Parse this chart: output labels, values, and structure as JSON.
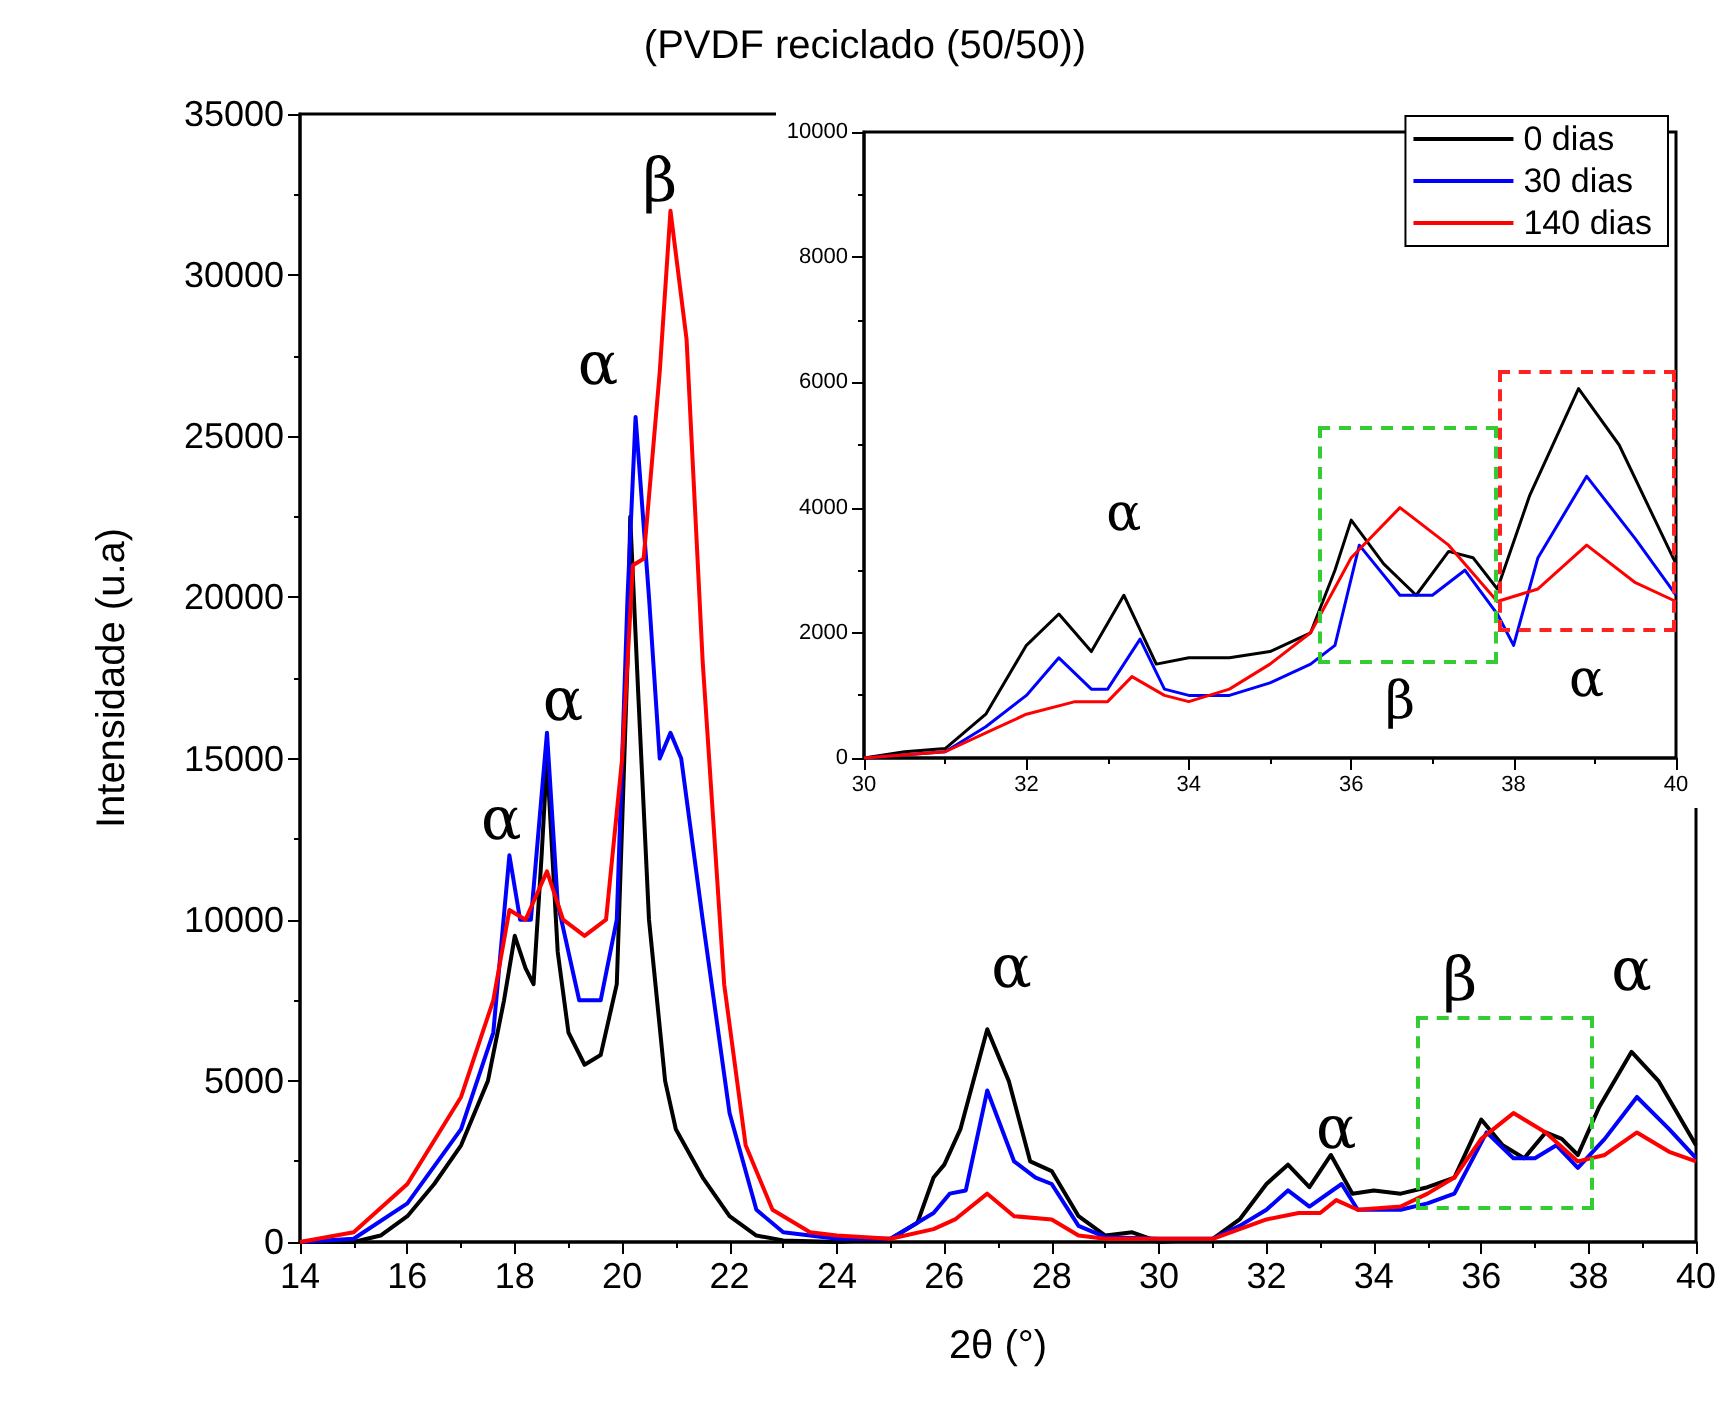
{
  "chart_data": [
    {
      "type": "line",
      "title": "(PVDF reciclado (50/50))",
      "xlabel": "2θ (°)",
      "ylabel": "Intensidade (u.a)",
      "xlim": [
        14,
        40
      ],
      "xticks": [
        14,
        16,
        18,
        20,
        22,
        24,
        26,
        28,
        30,
        32,
        34,
        36,
        38,
        40
      ],
      "ylim": [
        0,
        35000
      ],
      "yticks": [
        0,
        5000,
        10000,
        15000,
        20000,
        25000,
        30000,
        35000
      ],
      "grid": false,
      "legend": false,
      "annotations": [
        "α",
        "α",
        "α",
        "β",
        "α",
        "α",
        "β",
        "α"
      ],
      "series": [
        {
          "color": "#000000",
          "x": [
            14,
            15,
            15.5,
            16,
            16.5,
            17,
            17.5,
            17.8,
            18,
            18.2,
            18.35,
            18.5,
            18.6,
            18.8,
            19,
            19.3,
            19.6,
            19.9,
            20.1,
            20.15,
            20.3,
            20.5,
            20.8,
            21,
            21.5,
            22,
            22.5,
            23,
            24,
            25,
            25.5,
            25.8,
            26,
            26.3,
            26.8,
            27.2,
            27.6,
            28,
            28.5,
            29,
            29.5,
            30,
            31,
            31.5,
            32,
            32.4,
            32.8,
            33.2,
            33.6,
            34,
            34.5,
            35,
            35.5,
            36,
            36.4,
            36.8,
            37.2,
            37.5,
            37.8,
            38.2,
            38.8,
            39.3,
            40
          ],
          "values": [
            0,
            0,
            200,
            800,
            1800,
            3000,
            5000,
            7500,
            9500,
            8500,
            8000,
            12000,
            15000,
            9000,
            6500,
            5500,
            5800,
            8000,
            18000,
            22500,
            17000,
            10000,
            5000,
            3500,
            2000,
            800,
            200,
            50,
            0,
            100,
            600,
            2000,
            2400,
            3500,
            6600,
            5000,
            2500,
            2200,
            800,
            200,
            300,
            0,
            100,
            700,
            1800,
            2400,
            1700,
            2700,
            1500,
            1600,
            1500,
            1700,
            2000,
            3800,
            3000,
            2600,
            3400,
            3200,
            2700,
            4200,
            5900,
            5000,
            3000
          ]
        },
        {
          "color": "#0000ff",
          "x": [
            14,
            15,
            16,
            17,
            17.6,
            17.9,
            18.1,
            18.3,
            18.6,
            18.8,
            19.2,
            19.6,
            19.9,
            20.1,
            20.25,
            20.5,
            20.7,
            20.9,
            21.1,
            21.5,
            22,
            22.5,
            23,
            24,
            25,
            25.8,
            26.1,
            26.4,
            26.8,
            27.3,
            27.7,
            28,
            28.5,
            29,
            30,
            31,
            31.5,
            32,
            32.4,
            32.8,
            33.4,
            33.7,
            34.5,
            35,
            35.5,
            36.1,
            36.6,
            37,
            37.4,
            37.8,
            38.3,
            38.9,
            39.5,
            40
          ],
          "values": [
            0,
            100,
            1200,
            3500,
            6500,
            12000,
            10000,
            10000,
            15800,
            10500,
            7500,
            7500,
            10000,
            20000,
            25600,
            20000,
            15000,
            15800,
            15000,
            10000,
            4000,
            1000,
            300,
            100,
            100,
            900,
            1500,
            1600,
            4700,
            2500,
            2000,
            1800,
            500,
            150,
            100,
            100,
            500,
            1000,
            1600,
            1100,
            1800,
            1000,
            1000,
            1200,
            1500,
            3400,
            2600,
            2600,
            3000,
            2300,
            3200,
            4500,
            3500,
            2600
          ]
        },
        {
          "color": "#ff0000",
          "x": [
            14,
            15,
            16,
            17,
            17.6,
            17.9,
            18.2,
            18.6,
            18.9,
            19.3,
            19.7,
            20,
            20.2,
            20.4,
            20.7,
            20.9,
            21.2,
            21.5,
            21.9,
            22.3,
            22.8,
            23.5,
            24,
            25,
            25.8,
            26.2,
            26.8,
            27.3,
            28,
            28.5,
            29,
            30,
            31,
            31.5,
            32,
            32.6,
            33,
            33.3,
            33.7,
            34.5,
            35,
            35.5,
            36,
            36.6,
            37.2,
            37.8,
            38.3,
            38.9,
            39.5,
            40
          ],
          "values": [
            0,
            300,
            1800,
            4500,
            7500,
            10300,
            10000,
            11500,
            10000,
            9500,
            10000,
            15000,
            21000,
            21200,
            27000,
            32000,
            28000,
            18000,
            8000,
            3000,
            1000,
            300,
            200,
            100,
            400,
            700,
            1500,
            800,
            700,
            200,
            100,
            100,
            100,
            400,
            700,
            900,
            900,
            1300,
            1000,
            1100,
            1500,
            2000,
            3200,
            4000,
            3400,
            2500,
            2700,
            3400,
            2800,
            2500
          ]
        }
      ]
    },
    {
      "type": "line",
      "xlim": [
        30,
        40
      ],
      "xticks": [
        30,
        32,
        34,
        36,
        38,
        40
      ],
      "ylim": [
        0,
        10000
      ],
      "yticks": [
        0,
        2000,
        4000,
        6000,
        8000,
        10000
      ],
      "grid": false,
      "legend": "top right",
      "annotations": [
        "α",
        "β",
        "α"
      ],
      "series": [
        {
          "name": "0 dias",
          "color": "#000000",
          "x": [
            30,
            30.5,
            31,
            31.5,
            32,
            32.4,
            32.8,
            33.2,
            33.6,
            34,
            34.5,
            35,
            35.5,
            35.8,
            36,
            36.4,
            36.8,
            37.2,
            37.5,
            37.8,
            38.2,
            38.8,
            39.3,
            40
          ],
          "values": [
            0,
            100,
            150,
            700,
            1800,
            2300,
            1700,
            2600,
            1500,
            1600,
            1600,
            1700,
            2000,
            3000,
            3800,
            3100,
            2600,
            3300,
            3200,
            2700,
            4200,
            5900,
            5000,
            3100
          ]
        },
        {
          "name": "30 dias",
          "color": "#0000ff",
          "x": [
            30,
            31,
            31.5,
            32,
            32.4,
            32.8,
            33,
            33.4,
            33.7,
            34,
            34.5,
            35,
            35.5,
            35.8,
            36.1,
            36.6,
            37,
            37.4,
            37.8,
            38,
            38.3,
            38.9,
            39.5,
            40
          ],
          "values": [
            0,
            100,
            500,
            1000,
            1600,
            1100,
            1100,
            1900,
            1100,
            1000,
            1000,
            1200,
            1500,
            1800,
            3400,
            2600,
            2600,
            3000,
            2300,
            1800,
            3200,
            4500,
            3500,
            2600
          ]
        },
        {
          "name": "140 dias",
          "color": "#ff0000",
          "x": [
            30,
            31,
            31.5,
            32,
            32.6,
            33,
            33.3,
            33.7,
            34,
            34.5,
            35,
            35.5,
            36,
            36.6,
            37.2,
            37.8,
            38.3,
            38.9,
            39.5,
            40
          ],
          "values": [
            0,
            100,
            400,
            700,
            900,
            900,
            1300,
            1000,
            900,
            1100,
            1500,
            2000,
            3200,
            4000,
            3400,
            2500,
            2700,
            3400,
            2800,
            2500
          ]
        }
      ]
    }
  ]
}
